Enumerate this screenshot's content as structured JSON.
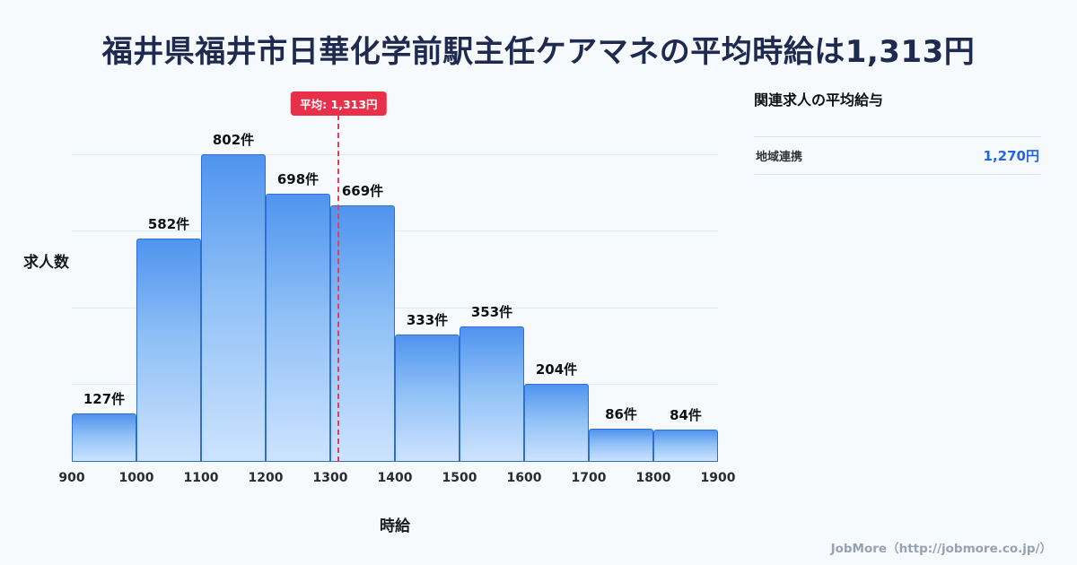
{
  "page": {
    "title": "福井県福井市日華化学前駅主任ケアマネの平均時給は1,313円",
    "footer": "JobMore（http://jobmore.co.jp/）",
    "background": "#f7fafd"
  },
  "chart_data": {
    "type": "bar",
    "title": "福井県福井市日華化学前駅主任ケアマネの平均時給は1,313円",
    "xlabel": "時給",
    "ylabel": "求人数",
    "categories": [
      "900-1000",
      "1000-1100",
      "1100-1200",
      "1200-1300",
      "1300-1400",
      "1400-1500",
      "1500-1600",
      "1600-1700",
      "1700-1800",
      "1800-1900"
    ],
    "x_ticks": [
      "900",
      "1000",
      "1100",
      "1200",
      "1300",
      "1400",
      "1500",
      "1600",
      "1700",
      "1800",
      "1900"
    ],
    "values": [
      127,
      582,
      802,
      698,
      669,
      333,
      353,
      204,
      86,
      84
    ],
    "value_labels": [
      "127件",
      "582件",
      "802件",
      "698件",
      "669件",
      "333件",
      "353件",
      "204件",
      "86件",
      "84件"
    ],
    "unit": "件",
    "bin_start": 900,
    "bin_width": 100,
    "ylim": [
      0,
      970
    ],
    "gridline_values": [
      200,
      400,
      600,
      800
    ],
    "grid": true,
    "legend": "none",
    "average": {
      "value": 1313,
      "label": "平均: 1,313円"
    },
    "colors": {
      "bar_top": "#4f94ef",
      "bar_bottom": "#cde3ff",
      "bar_border": "#2d6fd3",
      "average_line": "#e53e51",
      "average_badge": "#e8304a",
      "grid": "#e3e9f2"
    }
  },
  "sidebar": {
    "heading": "関連求人の平均給与",
    "items": [
      {
        "label": "地域連携",
        "value": "1,270円",
        "value_color": "#2563eb"
      }
    ]
  }
}
